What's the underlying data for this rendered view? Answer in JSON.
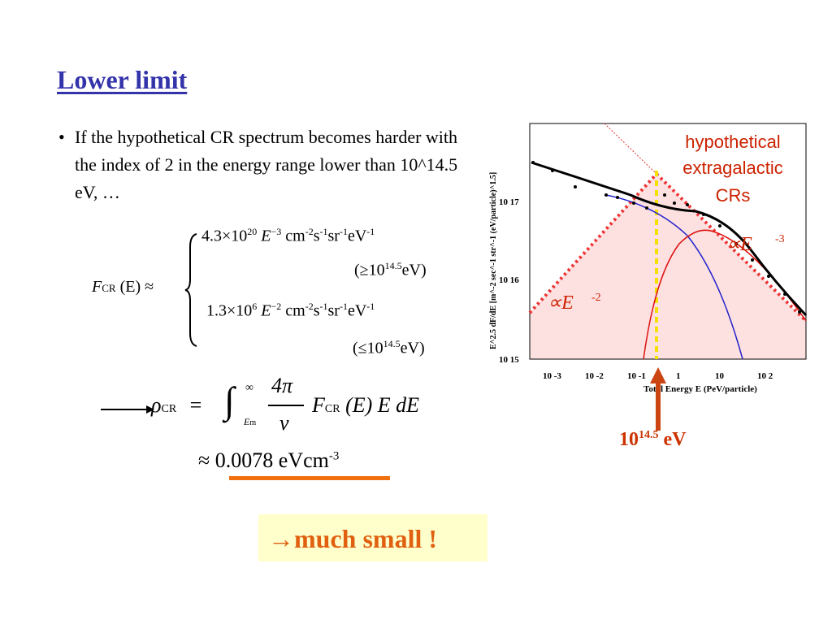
{
  "title": "Lower limit",
  "bullet": {
    "marker": "•",
    "text": "If the hypothetical CR spectrum becomes harder with the index of 2 in the energy range lower than 10^14.5 eV, …"
  },
  "flux_equation": {
    "lhs_F": "F",
    "lhs_sub": "CR",
    "lhs_arg": "(E) ≈",
    "case1_coef": "4.3×10",
    "case1_exp": "20",
    "case1_E": "E",
    "case1_Eexp": "−3",
    "case1_units": "cm",
    "case1_cond_pre": "(≥10",
    "case1_cond_exp": "14.5",
    "case1_cond_post": "eV)",
    "case2_coef": "1.3×10",
    "case2_exp": "6",
    "case2_E": "E",
    "case2_Eexp": "−2",
    "case2_cond_pre": "(≤10",
    "case2_cond_exp": "14.5",
    "case2_cond_post": "eV)",
    "unit_cm_exp": "-2",
    "unit_s": "s",
    "unit_s_exp": "-1",
    "unit_sr": "sr",
    "unit_sr_exp": "-1",
    "unit_eV": "eV",
    "unit_eV_exp": "-1"
  },
  "density_equation": {
    "rho": "ρ",
    "rho_sub": "CR",
    "equals": "=",
    "integral": "∫",
    "upper": "∞",
    "lower": "E",
    "lower_sub": "m",
    "numerator": "4π",
    "denominator": "v",
    "integrand_F": "F",
    "integrand_sub": "CR",
    "integrand_rest": "(E) E dE",
    "approx": "≈",
    "value": "0.0078",
    "unit": "eVcm",
    "unit_exp": "-3"
  },
  "conclusion": "→much small !",
  "energy_marker": {
    "base": "10",
    "exp": "14.5",
    "unit": "eV"
  },
  "plot": {
    "ylabel": "E^2.5 dF/dE [m^-2 sec^-1 str^-1 (eV/particle)^1.5]",
    "xlabel": "Total Energy E (PeV/particle)",
    "yticks": [
      "10 17",
      "10 16",
      "10 15"
    ],
    "xticks": [
      "10 -3",
      "10 -2",
      "10 -1",
      "1",
      "10",
      "10 2"
    ],
    "annotation_hyp": [
      "hypothetical",
      "extragalactic",
      "CRs"
    ],
    "slope_high": "∝E",
    "slope_high_exp": "-3",
    "slope_low": "∝E",
    "slope_low_exp": "-2"
  },
  "colors": {
    "title": "#3333aa",
    "annotation": "#cc2200",
    "highlight_bg": "#ffffcc",
    "highlight_text": "#e06010",
    "arrow": "#cc4411",
    "yellow_line": "#f5e000",
    "pink_fill": "#fde0e0"
  }
}
